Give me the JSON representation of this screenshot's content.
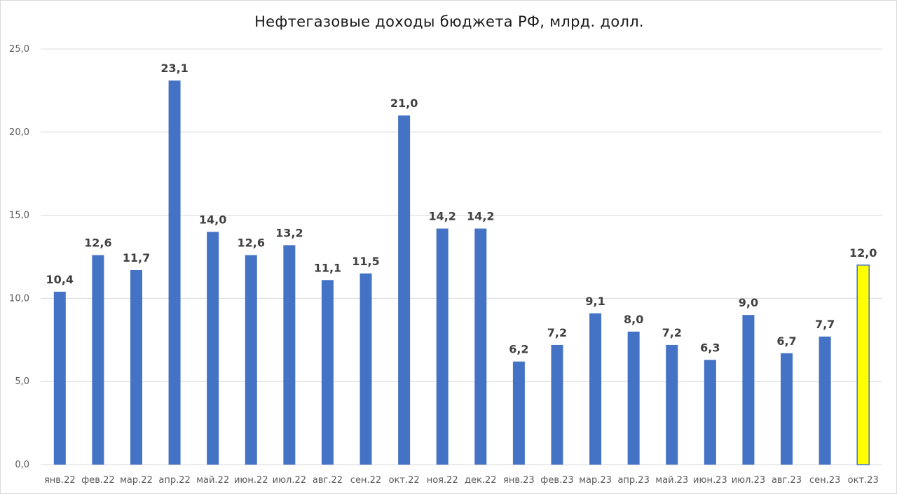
{
  "chart_data": {
    "type": "bar",
    "title": "Нефтегазовые доходы бюджета РФ, млрд. долл.",
    "xlabel": "",
    "ylabel": "",
    "ylim": [
      0,
      25
    ],
    "y_ticks": [
      "0,0",
      "5,0",
      "10,0",
      "15,0",
      "20,0",
      "25,0"
    ],
    "y_tick_values": [
      0,
      5,
      10,
      15,
      20,
      25
    ],
    "grid": true,
    "legend": "none",
    "categories": [
      "янв.22",
      "фев.22",
      "мар.22",
      "апр.22",
      "май.22",
      "июн.22",
      "июл.22",
      "авг.22",
      "сен.22",
      "окт.22",
      "ноя.22",
      "дек.22",
      "янв.23",
      "фев.23",
      "мар.23",
      "апр.23",
      "май.23",
      "июн.23",
      "июл.23",
      "авг.23",
      "сен.23",
      "окт.23"
    ],
    "values": [
      10.4,
      12.6,
      11.7,
      23.1,
      14.0,
      12.6,
      13.2,
      11.1,
      11.5,
      21.0,
      14.2,
      14.2,
      6.2,
      7.2,
      9.1,
      8.0,
      7.2,
      6.3,
      9.0,
      6.7,
      7.7,
      12.0
    ],
    "labels": [
      "10,4",
      "12,6",
      "11,7",
      "23,1",
      "14,0",
      "12,6",
      "13,2",
      "11,1",
      "11,5",
      "21,0",
      "14,2",
      "14,2",
      "6,2",
      "7,2",
      "9,1",
      "8,0",
      "7,2",
      "6,3",
      "9,0",
      "6,7",
      "7,7",
      "12,0"
    ],
    "colors": {
      "bar": "#4472c4",
      "highlight": "#ffff00",
      "highlight_border": "#4472c4",
      "grid": "#d9d9d9"
    },
    "highlight_index": 21
  }
}
